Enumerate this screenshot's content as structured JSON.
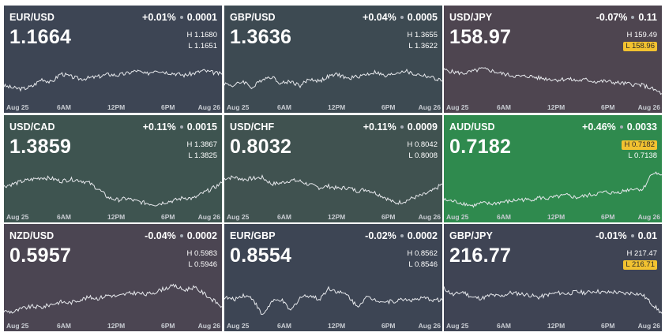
{
  "axis": {
    "labels": [
      "Aug 25",
      "6AM",
      "12PM",
      "6PM",
      "Aug 26"
    ]
  },
  "tiles": [
    {
      "symbol": "EUR/USD",
      "change_pct": "+0.01%",
      "change_abs": "0.0001",
      "price": "1.1664",
      "high": "1.1680",
      "low": "1.1651",
      "high_highlight": false,
      "low_highlight": false,
      "bg": "#3d4554",
      "spark": [
        0.35,
        0.3,
        0.28,
        0.34,
        0.5,
        0.42,
        0.62,
        0.55,
        0.5,
        0.52,
        0.55,
        0.6,
        0.58,
        0.62,
        0.68,
        0.6,
        0.7,
        0.65,
        0.62,
        0.58,
        0.62,
        0.68,
        0.64,
        0.6
      ]
    },
    {
      "symbol": "GBP/USD",
      "change_pct": "+0.04%",
      "change_abs": "0.0005",
      "price": "1.3636",
      "high": "1.3655",
      "low": "1.3622",
      "high_highlight": false,
      "low_highlight": false,
      "bg": "#3d4a52",
      "spark": [
        0.4,
        0.35,
        0.45,
        0.3,
        0.5,
        0.55,
        0.4,
        0.45,
        0.35,
        0.5,
        0.45,
        0.55,
        0.6,
        0.5,
        0.55,
        0.6,
        0.65,
        0.55,
        0.62,
        0.68,
        0.6,
        0.58,
        0.52,
        0.45
      ]
    },
    {
      "symbol": "USD/JPY",
      "change_pct": "-0.07%",
      "change_abs": "0.11",
      "price": "158.97",
      "high": "159.49",
      "low": "158.96",
      "high_highlight": false,
      "low_highlight": true,
      "bg": "#4e4550",
      "spark": [
        0.7,
        0.65,
        0.62,
        0.66,
        0.72,
        0.68,
        0.62,
        0.58,
        0.55,
        0.56,
        0.52,
        0.5,
        0.48,
        0.5,
        0.46,
        0.48,
        0.44,
        0.45,
        0.42,
        0.4,
        0.38,
        0.36,
        0.28,
        0.18
      ]
    },
    {
      "symbol": "USD/CAD",
      "change_pct": "+0.11%",
      "change_abs": "0.0015",
      "price": "1.3859",
      "high": "1.3867",
      "low": "1.3825",
      "high_highlight": false,
      "low_highlight": false,
      "bg": "#3e5450",
      "spark": [
        0.55,
        0.6,
        0.66,
        0.7,
        0.74,
        0.72,
        0.66,
        0.7,
        0.68,
        0.62,
        0.48,
        0.3,
        0.25,
        0.28,
        0.22,
        0.18,
        0.15,
        0.2,
        0.24,
        0.3,
        0.28,
        0.4,
        0.5,
        0.62
      ]
    },
    {
      "symbol": "USD/CHF",
      "change_pct": "+0.11%",
      "change_abs": "0.0009",
      "price": "0.8032",
      "high": "0.8042",
      "low": "0.8008",
      "high_highlight": false,
      "low_highlight": false,
      "bg": "#405250",
      "spark": [
        0.72,
        0.75,
        0.7,
        0.72,
        0.74,
        0.6,
        0.62,
        0.68,
        0.66,
        0.58,
        0.52,
        0.55,
        0.5,
        0.52,
        0.45,
        0.48,
        0.4,
        0.3,
        0.18,
        0.22,
        0.3,
        0.36,
        0.45,
        0.6
      ]
    },
    {
      "symbol": "AUD/USD",
      "change_pct": "+0.46%",
      "change_abs": "0.0033",
      "price": "0.7182",
      "high": "0.7182",
      "low": "0.7138",
      "high_highlight": true,
      "low_highlight": false,
      "bg": "#2f8a4e",
      "spark": [
        0.25,
        0.22,
        0.18,
        0.12,
        0.18,
        0.16,
        0.2,
        0.22,
        0.26,
        0.25,
        0.3,
        0.28,
        0.32,
        0.35,
        0.3,
        0.34,
        0.38,
        0.42,
        0.4,
        0.45,
        0.5,
        0.48,
        0.85,
        0.8
      ]
    },
    {
      "symbol": "NZD/USD",
      "change_pct": "-0.04%",
      "change_abs": "0.0002",
      "price": "0.5957",
      "high": "0.5983",
      "low": "0.5946",
      "high_highlight": false,
      "low_highlight": false,
      "bg": "#4b4552",
      "spark": [
        0.2,
        0.18,
        0.26,
        0.3,
        0.28,
        0.35,
        0.4,
        0.38,
        0.45,
        0.5,
        0.48,
        0.55,
        0.52,
        0.58,
        0.6,
        0.56,
        0.62,
        0.7,
        0.75,
        0.66,
        0.72,
        0.6,
        0.45,
        0.3
      ]
    },
    {
      "symbol": "EUR/GBP",
      "change_pct": "-0.02%",
      "change_abs": "0.0002",
      "price": "0.8554",
      "high": "0.8562",
      "low": "0.8546",
      "high_highlight": false,
      "low_highlight": false,
      "bg": "#3d4554",
      "spark": [
        0.5,
        0.45,
        0.55,
        0.48,
        0.1,
        0.4,
        0.45,
        0.2,
        0.5,
        0.55,
        0.45,
        0.7,
        0.62,
        0.55,
        0.3,
        0.5,
        0.45,
        0.4,
        0.42,
        0.46,
        0.44,
        0.48,
        0.45,
        0.44
      ]
    },
    {
      "symbol": "GBP/JPY",
      "change_pct": "-0.01%",
      "change_abs": "0.01",
      "price": "216.77",
      "high": "217.47",
      "low": "216.71",
      "high_highlight": false,
      "low_highlight": true,
      "bg": "#3f4454",
      "spark": [
        0.7,
        0.55,
        0.62,
        0.5,
        0.48,
        0.55,
        0.52,
        0.6,
        0.58,
        0.55,
        0.5,
        0.56,
        0.6,
        0.58,
        0.62,
        0.6,
        0.64,
        0.6,
        0.62,
        0.58,
        0.6,
        0.55,
        0.35,
        0.15
      ]
    }
  ]
}
